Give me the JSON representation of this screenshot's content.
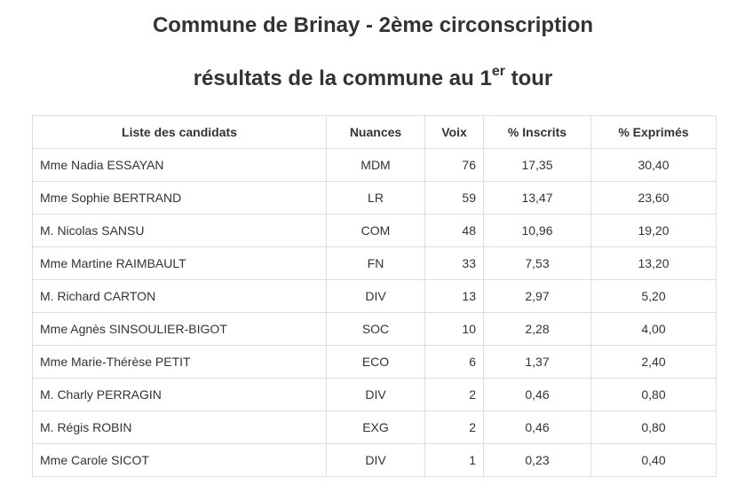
{
  "title_line1": "Commune de Brinay - 2ème circonscription",
  "title_line2_prefix": "résultats de la commune au 1",
  "title_line2_sup": "er",
  "title_line2_suffix": " tour",
  "table": {
    "headers": [
      "Liste des candidats",
      "Nuances",
      "Voix",
      "% Inscrits",
      "% Exprimés"
    ],
    "rows": [
      [
        "Mme Nadia ESSAYAN",
        "MDM",
        "76",
        "17,35",
        "30,40"
      ],
      [
        "Mme Sophie BERTRAND",
        "LR",
        "59",
        "13,47",
        "23,60"
      ],
      [
        "M. Nicolas SANSU",
        "COM",
        "48",
        "10,96",
        "19,20"
      ],
      [
        "Mme Martine RAIMBAULT",
        "FN",
        "33",
        "7,53",
        "13,20"
      ],
      [
        "M. Richard CARTON",
        "DIV",
        "13",
        "2,97",
        "5,20"
      ],
      [
        "Mme Agnès SINSOULIER-BIGOT",
        "SOC",
        "10",
        "2,28",
        "4,00"
      ],
      [
        "Mme Marie-Thérèse PETIT",
        "ECO",
        "6",
        "1,37",
        "2,40"
      ],
      [
        "M. Charly PERRAGIN",
        "DIV",
        "2",
        "0,46",
        "0,80"
      ],
      [
        "M. Régis ROBIN",
        "EXG",
        "2",
        "0,46",
        "0,80"
      ],
      [
        "Mme Carole SICOT",
        "DIV",
        "1",
        "0,23",
        "0,40"
      ]
    ]
  }
}
